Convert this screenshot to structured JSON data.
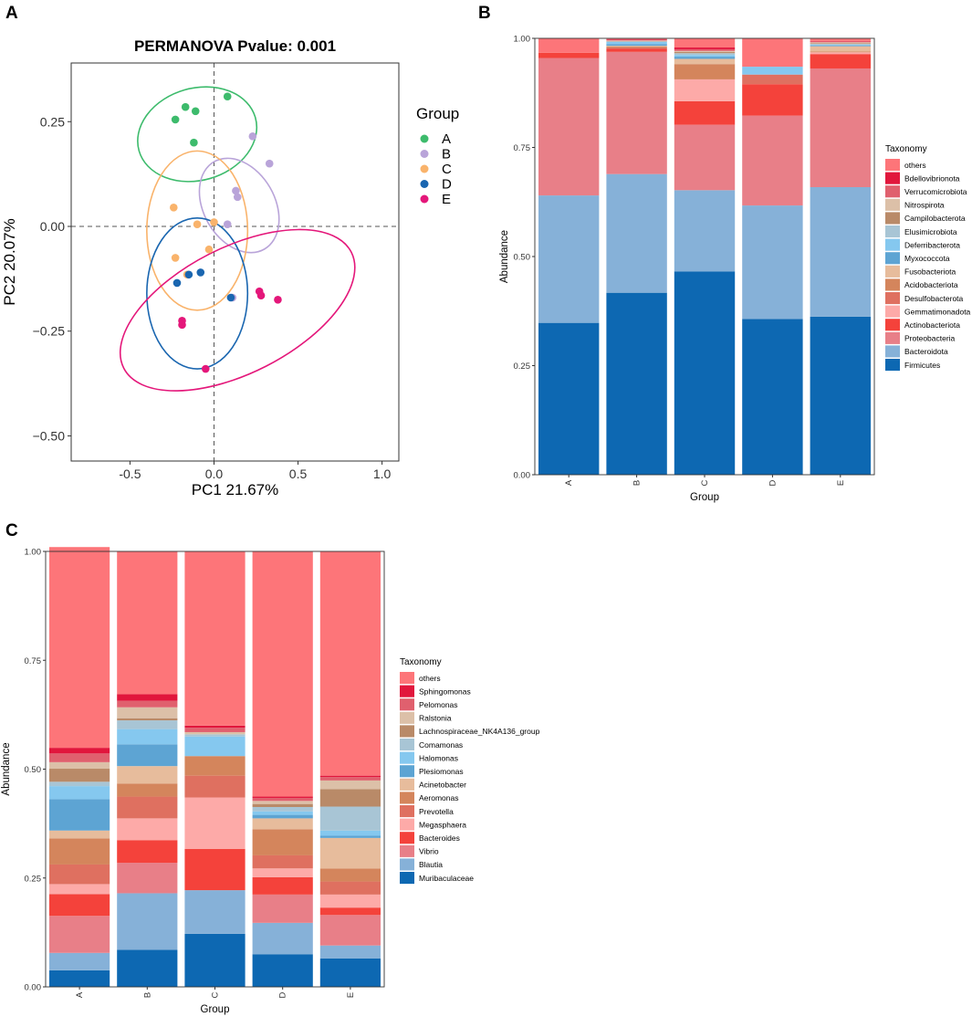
{
  "chart_data": [
    {
      "panel": "A",
      "type": "scatter",
      "title": "PERMANOVA Pvalue: 0.001",
      "xlabel": "PC1 21.67%",
      "ylabel": "PC2 20.07%",
      "xlim": [
        -0.85,
        1.1
      ],
      "ylim": [
        -0.56,
        0.39
      ],
      "xticks": [
        -0.5,
        0.0,
        0.5,
        1.0
      ],
      "xtick_labels": [
        "-0.5",
        "0.0",
        "0.5",
        "1.0"
      ],
      "yticks": [
        -0.5,
        -0.25,
        0.0,
        0.25
      ],
      "ytick_labels": [
        "−0.50",
        "−0.25",
        "0.00",
        "0.25"
      ],
      "legend_title": "Group",
      "series": [
        {
          "name": "A",
          "color": "#3dbb6c",
          "x": [
            -0.17,
            -0.11,
            0.08,
            -0.23,
            -0.12
          ],
          "y": [
            0.285,
            0.275,
            0.31,
            0.255,
            0.2
          ],
          "ellipse": {
            "cx": -0.1,
            "cy": 0.22,
            "rx": 0.36,
            "ry": 0.11,
            "angle": 16
          }
        },
        {
          "name": "B",
          "color": "#b9a4d9",
          "x": [
            0.23,
            0.33,
            0.13,
            0.14,
            0.08,
            0.11
          ],
          "y": [
            0.215,
            0.15,
            0.085,
            0.07,
            0.005,
            -0.17
          ],
          "ellipse": {
            "cx": 0.15,
            "cy": 0.05,
            "rx": 0.3,
            "ry": 0.085,
            "angle": -60
          }
        },
        {
          "name": "C",
          "color": "#f9b36b",
          "x": [
            -0.24,
            -0.1,
            0.0,
            -0.23,
            -0.03,
            -0.16
          ],
          "y": [
            0.045,
            0.005,
            0.01,
            -0.075,
            -0.055,
            -0.115
          ],
          "ellipse": {
            "cx": -0.1,
            "cy": -0.01,
            "rx": 0.3,
            "ry": 0.19,
            "angle": 0
          }
        },
        {
          "name": "D",
          "color": "#1a66b0",
          "x": [
            -0.22,
            -0.15,
            -0.08,
            0.1
          ],
          "y": [
            -0.135,
            -0.115,
            -0.11,
            -0.17
          ],
          "ellipse": {
            "cx": -0.1,
            "cy": -0.16,
            "rx": 0.3,
            "ry": 0.18,
            "angle": 0
          }
        },
        {
          "name": "E",
          "color": "#e4177a",
          "x": [
            0.27,
            0.28,
            0.38,
            -0.19,
            -0.19,
            -0.05
          ],
          "y": [
            -0.155,
            -0.165,
            -0.175,
            -0.225,
            -0.235,
            -0.34
          ],
          "ellipse": {
            "cx": 0.14,
            "cy": -0.2,
            "rx": 0.76,
            "ry": 0.15,
            "angle": 27
          }
        }
      ]
    },
    {
      "panel": "B",
      "type": "bar",
      "stacked": true,
      "xlabel": "Group",
      "ylabel": "Abundance",
      "ylim": [
        0,
        1
      ],
      "yticks": [
        0,
        0.25,
        0.5,
        0.75,
        1.0
      ],
      "ytick_labels": [
        "0.00",
        "0.25",
        "0.50",
        "0.75",
        "1.00"
      ],
      "categories": [
        "A",
        "B",
        "C",
        "D",
        "E"
      ],
      "legend_title": "Taxonomy",
      "series": [
        {
          "name": "Firmicutes",
          "color": "#0d68b2",
          "values": [
            0.348,
            0.417,
            0.466,
            0.357,
            0.362
          ]
        },
        {
          "name": "Bacteroidota",
          "color": "#86b1d8",
          "values": [
            0.292,
            0.272,
            0.186,
            0.26,
            0.297
          ]
        },
        {
          "name": "Proteobacteria",
          "color": "#e87f88",
          "values": [
            0.315,
            0.28,
            0.15,
            0.206,
            0.272
          ]
        },
        {
          "name": "Actinobacteriota",
          "color": "#f4423b",
          "values": [
            0.012,
            0.007,
            0.054,
            0.072,
            0.033
          ]
        },
        {
          "name": "Gemmatimonadota",
          "color": "#fdaaa8",
          "values": [
            0.0,
            0.0,
            0.05,
            0.0,
            0.004
          ]
        },
        {
          "name": "Desulfobacterota",
          "color": "#df7060",
          "values": [
            0.0,
            0.002,
            0.0,
            0.022,
            0.0
          ]
        },
        {
          "name": "Acidobacteriota",
          "color": "#d4855c",
          "values": [
            0.0,
            0.003,
            0.035,
            0.0,
            0.002
          ]
        },
        {
          "name": "Fusobacteriota",
          "color": "#e7bc9c",
          "values": [
            0.0,
            0.002,
            0.012,
            0.0,
            0.012
          ]
        },
        {
          "name": "Myxococcota",
          "color": "#5da4d3",
          "values": [
            0.0,
            0.004,
            0.005,
            0.0,
            0.002
          ]
        },
        {
          "name": "Deferribacterota",
          "color": "#85c8ef",
          "values": [
            0.0,
            0.005,
            0.004,
            0.018,
            0.002
          ]
        },
        {
          "name": "Elusimicrobiota",
          "color": "#a8c5d5",
          "values": [
            0.0,
            0.001,
            0.004,
            0.0,
            0.001
          ]
        },
        {
          "name": "Campilobacterota",
          "color": "#b98a68",
          "values": [
            0.0,
            0.001,
            0.003,
            0.0,
            0.002
          ]
        },
        {
          "name": "Nitrospirota",
          "color": "#dcc0a8",
          "values": [
            0.0,
            0.001,
            0.002,
            0.0,
            0.002
          ]
        },
        {
          "name": "Verrucomicrobiota",
          "color": "#e0606e",
          "values": [
            0.0,
            0.002,
            0.004,
            0.0,
            0.002
          ]
        },
        {
          "name": "Bdellovibrionota",
          "color": "#e1163c",
          "values": [
            0.0,
            0.001,
            0.004,
            0.0,
            0.001
          ]
        },
        {
          "name": "others",
          "color": "#fd7579",
          "values": [
            0.033,
            0.002,
            0.021,
            0.065,
            0.005
          ]
        }
      ]
    },
    {
      "panel": "C",
      "type": "bar",
      "stacked": true,
      "xlabel": "Group",
      "ylabel": "Abundance",
      "ylim": [
        0,
        1
      ],
      "yticks": [
        0,
        0.25,
        0.5,
        0.75,
        1.0
      ],
      "ytick_labels": [
        "0.00",
        "0.25",
        "0.50",
        "0.75",
        "1.00"
      ],
      "categories": [
        "A",
        "B",
        "C",
        "D",
        "E"
      ],
      "legend_title": "Taxonomy",
      "series": [
        {
          "name": "Muribaculaceae",
          "color": "#0d68b2",
          "values": [
            0.038,
            0.085,
            0.122,
            0.075,
            0.065
          ]
        },
        {
          "name": "Blautia",
          "color": "#86b1d8",
          "values": [
            0.04,
            0.13,
            0.1,
            0.072,
            0.03
          ]
        },
        {
          "name": "Vibrio",
          "color": "#e87f88",
          "values": [
            0.085,
            0.07,
            0.0,
            0.065,
            0.07
          ]
        },
        {
          "name": "Bacteroides",
          "color": "#f4423b",
          "values": [
            0.05,
            0.052,
            0.095,
            0.04,
            0.017
          ]
        },
        {
          "name": "Megasphaera",
          "color": "#fdaaa8",
          "values": [
            0.023,
            0.05,
            0.118,
            0.02,
            0.03
          ]
        },
        {
          "name": "Prevotella",
          "color": "#df7060",
          "values": [
            0.045,
            0.05,
            0.05,
            0.03,
            0.03
          ]
        },
        {
          "name": "Aeromonas",
          "color": "#d4855c",
          "values": [
            0.06,
            0.03,
            0.045,
            0.06,
            0.03
          ]
        },
        {
          "name": "Acinetobacter",
          "color": "#e7bc9c",
          "values": [
            0.018,
            0.04,
            0.0,
            0.025,
            0.07
          ]
        },
        {
          "name": "Plesiomonas",
          "color": "#5da4d3",
          "values": [
            0.072,
            0.05,
            0.0,
            0.008,
            0.005
          ]
        },
        {
          "name": "Halomonas",
          "color": "#85c8ef",
          "values": [
            0.03,
            0.035,
            0.045,
            0.008,
            0.012
          ]
        },
        {
          "name": "Comamonas",
          "color": "#a8c5d5",
          "values": [
            0.01,
            0.02,
            0.005,
            0.01,
            0.055
          ]
        },
        {
          "name": "Lachnospiraceae_NK4A136_group",
          "color": "#b98a68",
          "values": [
            0.03,
            0.005,
            0.0,
            0.007,
            0.04
          ]
        },
        {
          "name": "Ralstonia",
          "color": "#dcc0a8",
          "values": [
            0.015,
            0.025,
            0.005,
            0.007,
            0.02
          ]
        },
        {
          "name": "Pelomonas",
          "color": "#e0606e",
          "values": [
            0.02,
            0.015,
            0.01,
            0.007,
            0.008
          ]
        },
        {
          "name": "Sphingomonas",
          "color": "#e1163c",
          "values": [
            0.013,
            0.015,
            0.005,
            0.003,
            0.003
          ]
        },
        {
          "name": "others",
          "color": "#fd7579",
          "values": [
            0.461,
            0.328,
            0.4,
            0.563,
            0.515
          ]
        }
      ]
    }
  ]
}
